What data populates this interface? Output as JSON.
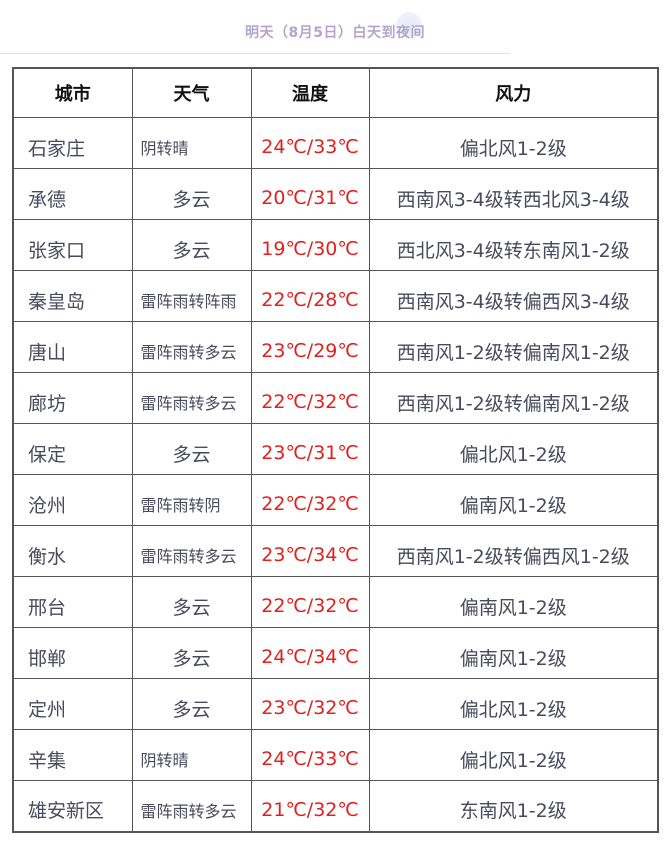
{
  "title": "明天（8月5日）白天到夜间",
  "headers": [
    "城市",
    "天气",
    "温度",
    "风力"
  ],
  "rows": [
    {
      "city": "石家庄",
      "weather": "阴转晴",
      "temp": "24℃/33℃",
      "wind": "偏北风1-2级"
    },
    {
      "city": "承德",
      "weather": "多云",
      "temp": "20℃/31℃",
      "wind": "西南风3-4级转西北风3-4级"
    },
    {
      "city": "张家口",
      "weather": "多云",
      "temp": "19℃/30℃",
      "wind": "西北风3-4级转东南风1-2级"
    },
    {
      "city": "秦皇岛",
      "weather": "雷阵雨转阵雨",
      "temp": "22℃/28℃",
      "wind": "西南风3-4级转偏西风3-4级"
    },
    {
      "city": "唐山",
      "weather": "雷阵雨转多云",
      "temp": "23℃/29℃",
      "wind": "西南风1-2级转偏南风1-2级"
    },
    {
      "city": "廊坊",
      "weather": "雷阵雨转多云",
      "temp": "22℃/32℃",
      "wind": "西南风1-2级转偏南风1-2级"
    },
    {
      "city": "保定",
      "weather": "多云",
      "temp": "23℃/31℃",
      "wind": "偏北风1-2级"
    },
    {
      "city": "沧州",
      "weather": "雷阵雨转阴",
      "temp": "22℃/32℃",
      "wind": "偏南风1-2级"
    },
    {
      "city": "衡水",
      "weather": "雷阵雨转多云",
      "temp": "23℃/34℃",
      "wind": "西南风1-2级转偏西风1-2级"
    },
    {
      "city": "邢台",
      "weather": "多云",
      "temp": "22℃/32℃",
      "wind": "偏南风1-2级"
    },
    {
      "city": "邯郸",
      "weather": "多云",
      "temp": "24℃/34℃",
      "wind": "偏南风1-2级"
    },
    {
      "city": "定州",
      "weather": "多云",
      "temp": "23℃/32℃",
      "wind": "偏北风1-2级"
    },
    {
      "city": "辛集",
      "weather": "阴转晴",
      "temp": "24℃/33℃",
      "wind": "偏北风1-2级"
    },
    {
      "city": "雄安新区",
      "weather": "雷阵雨转多云",
      "temp": "21℃/32℃",
      "wind": "东南风1-2级"
    }
  ],
  "colors": {
    "temp": "#e0201e",
    "text": "#4a4a5e",
    "title": "#b3a6cc"
  }
}
